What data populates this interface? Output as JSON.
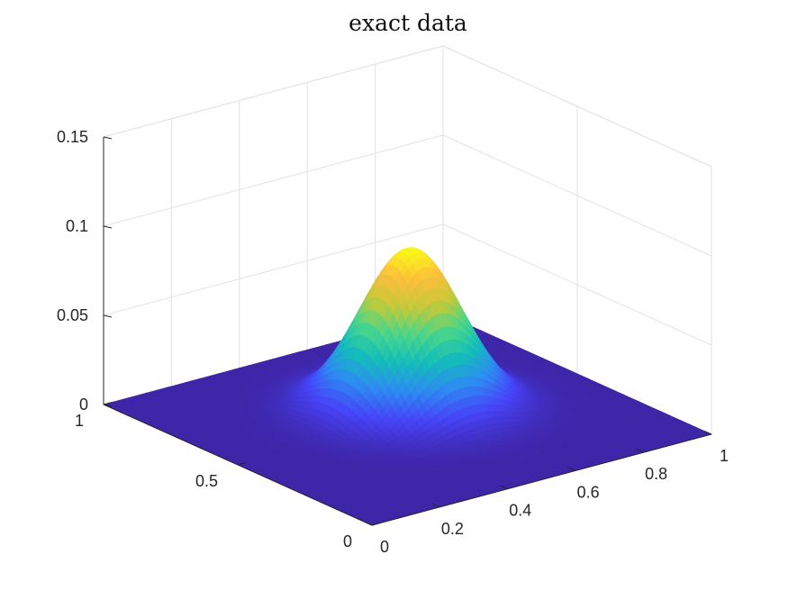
{
  "chart_data": {
    "type": "surface",
    "title": "exact data",
    "xlabel": "",
    "ylabel": "",
    "zlabel": "",
    "x_axis": {
      "range": [
        0,
        1
      ],
      "ticks": [
        0,
        0.2,
        0.4,
        0.6,
        0.8,
        1
      ],
      "tick_labels": [
        "0",
        "0.2",
        "0.4",
        "0.6",
        "0.8",
        "1"
      ]
    },
    "y_axis": {
      "range": [
        0,
        1
      ],
      "ticks": [
        0,
        0.5,
        1
      ],
      "tick_labels": [
        "0",
        "0.5",
        "1"
      ]
    },
    "z_axis": {
      "range": [
        0,
        0.15
      ],
      "ticks": [
        0,
        0.05,
        0.1,
        0.15
      ],
      "tick_labels": [
        "0",
        "0.05",
        "0.1",
        "0.15"
      ]
    },
    "surface": {
      "function": "gaussian",
      "peak_z": 0.09,
      "center_x": 0.55,
      "center_y": 0.55,
      "sigma_x": 0.12,
      "sigma_y": 0.12
    },
    "grid": true,
    "colormap": "parula",
    "colormap_stops": [
      "#3e26a8",
      "#4743f8",
      "#2d8cf2",
      "#13beb8",
      "#49d68b",
      "#c3ca38",
      "#fcbd3d",
      "#f9fb15"
    ]
  }
}
